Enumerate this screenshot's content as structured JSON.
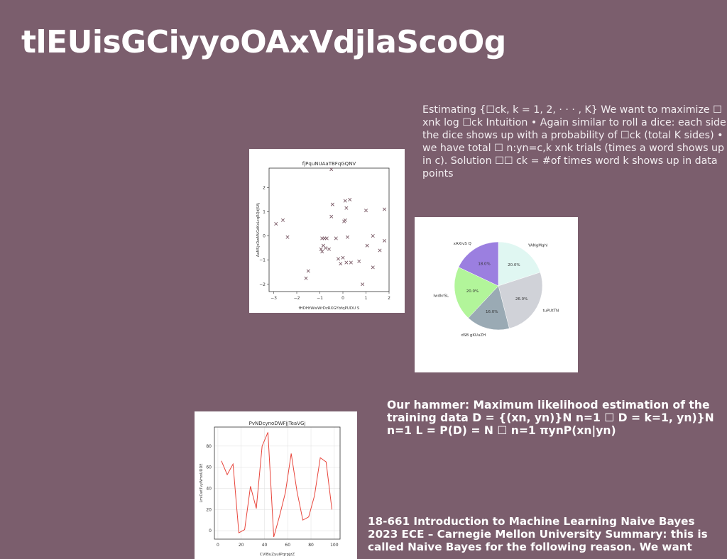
{
  "slide": {
    "title": "tlEUisGCiyyoOAxVdjlaScoOg",
    "text1": "Estimating {☐ck, k = 1, 2, · · · , K} We want to maximize ☐ xnk log ☐ck Intuition • Again similar to roll a dice: each side the dice shows up with a probability of ☐ck (total K sides) • we have total ☐ n:yn=c,k xnk trials (times a word shows up in c). Solution ☐☐ ck = #of times word k shows up in data points",
    "text2": "Our hammer: Maximum likelihood estimation of the training data D = {(xn, yn)}N n=1 ☐ D = k=1, yn)}N n=1 L = P(D) = N ☐ n=1 πynP(xn|yn)",
    "text3": "18-661 Introduction to Machine Learning Naive Bayes 2023 ECE – Carnegie Mellon University Summary: this is called Naive Bayes for the following reason. We want"
  },
  "chart_data": [
    {
      "type": "scatter",
      "title": "fjPquNUAaTBFqGQNV",
      "xlabel": "fHDHtWwWrDzRXGYbfqPUDU S",
      "ylabel": "AaMSjnDwMVGdKxLcqRQdjSAj",
      "xlim": [
        -3.2,
        2.0
      ],
      "ylim": [
        -2.3,
        2.8
      ],
      "xticks": [
        -3,
        -2,
        -1,
        0,
        1,
        2
      ],
      "yticks": [
        -2,
        -1,
        0,
        1,
        2
      ],
      "xtick_labels": [
        "−3",
        "−2",
        "−1",
        "0",
        "1",
        "2"
      ],
      "ytick_labels": [
        "−2",
        "−1",
        "0",
        "1",
        "2"
      ],
      "marker": "x",
      "color": "#7a5a66",
      "points": [
        [
          -2.9,
          0.5
        ],
        [
          -2.6,
          0.65
        ],
        [
          -2.4,
          -0.05
        ],
        [
          -0.5,
          2.75
        ],
        [
          -0.5,
          0.8
        ],
        [
          -0.45,
          1.3
        ],
        [
          0.1,
          1.45
        ],
        [
          0.3,
          1.5
        ],
        [
          0.15,
          1.15
        ],
        [
          0.05,
          0.6
        ],
        [
          1.0,
          1.05
        ],
        [
          1.8,
          1.1
        ],
        [
          -0.9,
          -0.1
        ],
        [
          -0.8,
          -0.1
        ],
        [
          -0.7,
          -0.1
        ],
        [
          -0.3,
          -0.1
        ],
        [
          0.1,
          0.65
        ],
        [
          0.2,
          -0.05
        ],
        [
          1.3,
          0.0
        ],
        [
          1.8,
          -0.2
        ],
        [
          1.05,
          -0.4
        ],
        [
          1.6,
          -0.6
        ],
        [
          -0.95,
          -0.55
        ],
        [
          -0.9,
          -0.65
        ],
        [
          -0.85,
          -0.4
        ],
        [
          -0.75,
          -0.5
        ],
        [
          -0.6,
          -0.55
        ],
        [
          -0.2,
          -0.95
        ],
        [
          -0.1,
          -1.15
        ],
        [
          0.0,
          -0.9
        ],
        [
          0.15,
          -1.1
        ],
        [
          0.35,
          -1.1
        ],
        [
          0.7,
          -1.05
        ],
        [
          1.3,
          -1.3
        ],
        [
          -1.5,
          -1.45
        ],
        [
          -1.6,
          -1.75
        ],
        [
          0.85,
          -2.0
        ]
      ]
    },
    {
      "type": "pie",
      "slices": [
        {
          "label": "YANgMqhl",
          "value": 20.0,
          "pct_label": "20.0%",
          "color": "#e0f7f2"
        },
        {
          "label": "tuPUtTN",
          "value": 26.0,
          "pct_label": "26.0%",
          "color": "#d0d2d8"
        },
        {
          "label": "dSB gKUuZH",
          "value": 16.0,
          "pct_label": "16.0%",
          "color": "#9aaab4"
        },
        {
          "label": "lwdkrSL",
          "value": 20.0,
          "pct_label": "20.0%",
          "color": "#b2f59a"
        },
        {
          "label": "xAXivS Q",
          "value": 18.0,
          "pct_label": "18.0%",
          "color": "#9b7fe0"
        }
      ]
    },
    {
      "type": "line",
      "title": "PvNDcynoDWFjjTeaVGj",
      "xlabel": "CVlBuZyuIPqrpjzZ",
      "ylabel": "LmiCwtTvyWmnUDDE",
      "xlim": [
        -3,
        105
      ],
      "ylim": [
        -8,
        98
      ],
      "xticks": [
        0,
        20,
        40,
        60,
        80,
        100
      ],
      "yticks": [
        0,
        20,
        40,
        60,
        80
      ],
      "grid": true,
      "color": "#e8443a",
      "x": [
        3,
        8,
        13,
        18,
        23,
        28,
        33,
        38,
        43,
        48,
        53,
        58,
        63,
        68,
        73,
        78,
        83,
        88,
        93,
        98
      ],
      "y": [
        66,
        53,
        63,
        -2,
        1,
        42,
        21,
        80,
        93,
        -6,
        14,
        36,
        73,
        37,
        10,
        13,
        33,
        69,
        65,
        20
      ]
    }
  ]
}
